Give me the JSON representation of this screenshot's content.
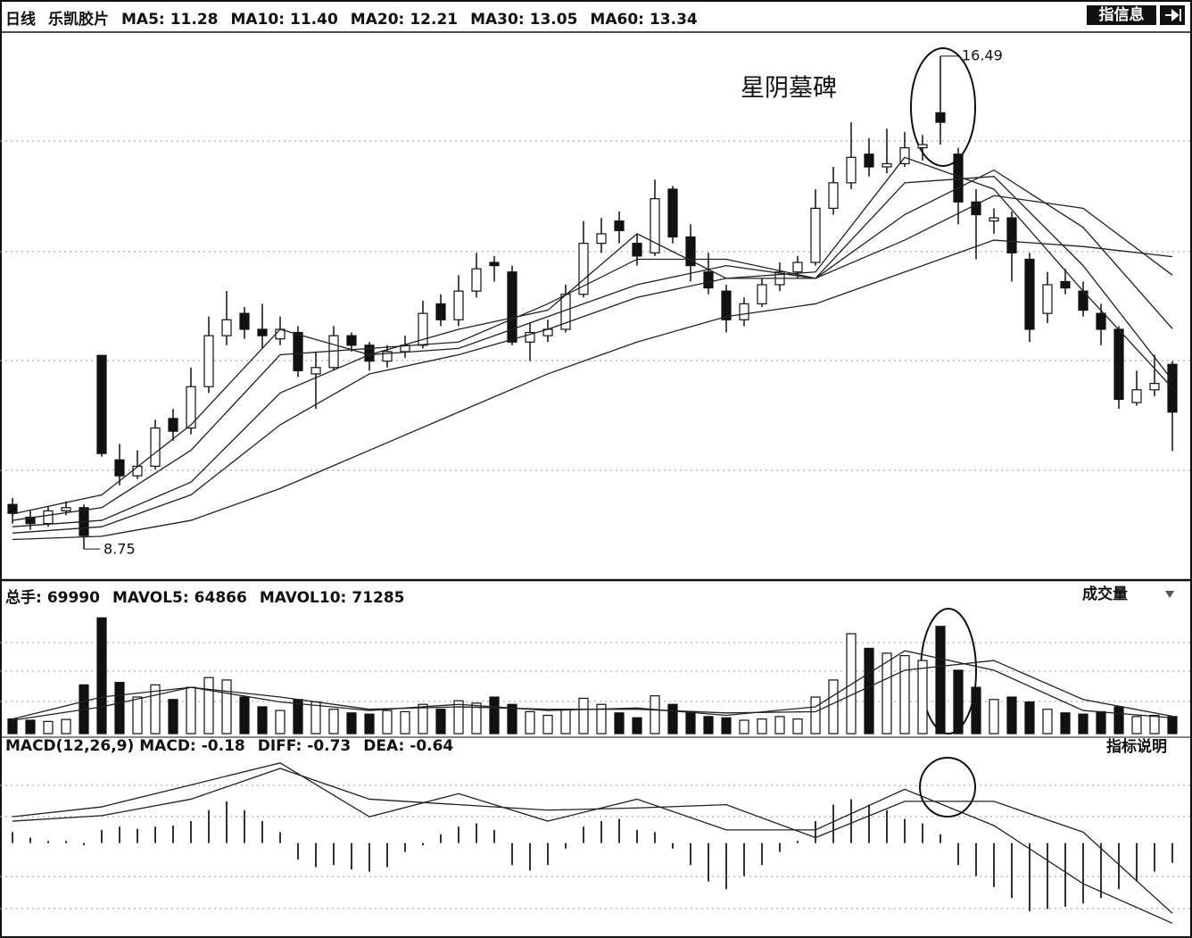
{
  "chart_data": {
    "type": "candlestick",
    "period": "日线",
    "name": "乐凯胶片",
    "info_button": "指信息",
    "annotation": "星阴墓碑",
    "high_label": 16.49,
    "low_label": 8.75,
    "ylim": [
      8.29,
      16.88
    ],
    "candles": [
      [
        9.45,
        9.55,
        9.15,
        9.31
      ],
      [
        9.25,
        9.35,
        9.05,
        9.15
      ],
      [
        9.15,
        9.42,
        9.1,
        9.35
      ],
      [
        9.35,
        9.5,
        9.28,
        9.4
      ],
      [
        9.4,
        9.45,
        8.75,
        8.96
      ],
      [
        11.79,
        11.8,
        10.2,
        10.25
      ],
      [
        10.15,
        10.4,
        9.75,
        9.9
      ],
      [
        9.9,
        10.3,
        9.85,
        10.05
      ],
      [
        10.05,
        10.78,
        10.0,
        10.65
      ],
      [
        10.8,
        10.95,
        10.45,
        10.6
      ],
      [
        10.65,
        11.6,
        10.55,
        11.3
      ],
      [
        11.3,
        12.4,
        11.2,
        12.1
      ],
      [
        12.1,
        12.8,
        11.95,
        12.35
      ],
      [
        12.45,
        12.55,
        12.05,
        12.2
      ],
      [
        12.2,
        12.6,
        11.9,
        12.1
      ],
      [
        12.05,
        12.4,
        11.95,
        12.2
      ],
      [
        12.15,
        12.25,
        11.45,
        11.55
      ],
      [
        11.5,
        11.85,
        10.95,
        11.6
      ],
      [
        11.6,
        12.25,
        11.55,
        12.1
      ],
      [
        12.1,
        12.15,
        11.85,
        11.95
      ],
      [
        11.95,
        12.0,
        11.55,
        11.7
      ],
      [
        11.7,
        11.95,
        11.6,
        11.85
      ],
      [
        11.85,
        12.1,
        11.75,
        11.95
      ],
      [
        11.95,
        12.65,
        11.9,
        12.45
      ],
      [
        12.6,
        12.75,
        12.25,
        12.35
      ],
      [
        12.35,
        13.05,
        12.25,
        12.8
      ],
      [
        12.8,
        13.4,
        12.7,
        13.15
      ],
      [
        13.25,
        13.35,
        12.95,
        13.2
      ],
      [
        13.1,
        13.2,
        11.95,
        12.0
      ],
      [
        12.0,
        12.3,
        11.7,
        12.15
      ],
      [
        12.1,
        12.35,
        12.0,
        12.2
      ],
      [
        12.2,
        12.9,
        12.15,
        12.75
      ],
      [
        12.75,
        13.9,
        12.7,
        13.55
      ],
      [
        13.55,
        13.95,
        13.4,
        13.7
      ],
      [
        13.9,
        14.05,
        13.55,
        13.75
      ],
      [
        13.55,
        13.7,
        13.2,
        13.35
      ],
      [
        13.4,
        14.55,
        13.35,
        14.25
      ],
      [
        14.4,
        14.45,
        13.55,
        13.65
      ],
      [
        13.65,
        13.85,
        12.95,
        13.2
      ],
      [
        13.1,
        13.4,
        12.75,
        12.85
      ],
      [
        12.8,
        12.9,
        12.15,
        12.35
      ],
      [
        12.35,
        12.7,
        12.25,
        12.6
      ],
      [
        12.6,
        13.0,
        12.55,
        12.9
      ],
      [
        12.9,
        13.25,
        12.8,
        13.1
      ],
      [
        13.1,
        13.35,
        13.0,
        13.25
      ],
      [
        13.25,
        14.4,
        13.2,
        14.1
      ],
      [
        14.1,
        14.75,
        14.0,
        14.5
      ],
      [
        14.5,
        15.45,
        14.4,
        14.9
      ],
      [
        14.95,
        15.2,
        14.6,
        14.75
      ],
      [
        14.75,
        15.35,
        14.65,
        14.8
      ],
      [
        14.8,
        15.3,
        14.75,
        15.05
      ],
      [
        15.05,
        15.25,
        14.85,
        15.1
      ],
      [
        15.6,
        16.49,
        15.1,
        15.45
      ],
      [
        14.95,
        15.05,
        13.85,
        14.2
      ],
      [
        14.2,
        14.4,
        13.3,
        14.0
      ],
      [
        13.9,
        14.1,
        13.7,
        13.95
      ],
      [
        13.95,
        14.05,
        12.95,
        13.4
      ],
      [
        13.3,
        13.4,
        12.0,
        12.2
      ],
      [
        12.45,
        13.1,
        12.3,
        12.9
      ],
      [
        12.95,
        13.15,
        12.75,
        12.85
      ],
      [
        12.8,
        12.95,
        12.4,
        12.5
      ],
      [
        12.45,
        12.6,
        11.95,
        12.2
      ],
      [
        12.2,
        12.25,
        10.95,
        11.1
      ],
      [
        11.05,
        11.55,
        11.0,
        11.25
      ],
      [
        11.25,
        11.8,
        11.15,
        11.35
      ],
      [
        11.65,
        11.7,
        10.29,
        10.9
      ]
    ],
    "ma_x": [
      0,
      5,
      10,
      15,
      20,
      25,
      30,
      35,
      40,
      45,
      50,
      55,
      60,
      65
    ],
    "indicators": [
      {
        "name": "MA5:",
        "value": 11.28,
        "values": [
          9.3,
          9.6,
          10.7,
          12.2,
          11.8,
          12.2,
          12.5,
          13.7,
          13.0,
          13.1,
          14.9,
          14.4,
          12.8,
          11.28
        ]
      },
      {
        "name": "MA10:",
        "value": 11.4,
        "value_label": "11.40",
        "values": [
          9.2,
          9.4,
          10.3,
          11.8,
          11.9,
          12.0,
          12.6,
          13.3,
          13.3,
          13.0,
          14.5,
          14.6,
          13.2,
          11.4
        ]
      },
      {
        "name": "MA20:",
        "value": 12.21,
        "values": [
          9.1,
          9.2,
          9.8,
          11.2,
          11.8,
          11.9,
          12.4,
          12.9,
          13.2,
          13.0,
          14.0,
          14.7,
          13.8,
          12.21
        ]
      },
      {
        "name": "MA30:",
        "value": 13.05,
        "values": [
          9.0,
          9.1,
          9.6,
          10.7,
          11.5,
          11.8,
          12.2,
          12.7,
          13.0,
          13.0,
          13.6,
          14.3,
          14.1,
          13.05
        ]
      },
      {
        "name": "MA60:",
        "value": 13.34,
        "values": [
          8.9,
          8.95,
          9.2,
          9.7,
          10.3,
          10.9,
          11.5,
          12.0,
          12.4,
          12.6,
          13.1,
          13.6,
          13.5,
          13.34
        ]
      }
    ],
    "volume": {
      "title": "成交量",
      "ylim": [
        0,
        520000
      ],
      "indicators": [
        {
          "name": "总手:",
          "value": 69990
        },
        {
          "name": "MAVOL5:",
          "value": 64866,
          "values": [
            60000,
            150000,
            190000,
            130000,
            95000,
            120000,
            95000,
            105000,
            75000,
            110000,
            340000,
            260000,
            95000,
            64866
          ]
        },
        {
          "name": "MAVOL10:",
          "value": 71285,
          "values": [
            55000,
            110000,
            190000,
            150000,
            100000,
            110000,
            100000,
            100000,
            85000,
            90000,
            260000,
            300000,
            140000,
            71285
          ]
        }
      ],
      "values": [
        60000,
        55000,
        50000,
        58000,
        200000,
        475000,
        210000,
        150000,
        200000,
        140000,
        190000,
        230000,
        220000,
        150000,
        110000,
        95000,
        140000,
        130000,
        100000,
        85000,
        80000,
        95000,
        90000,
        120000,
        100000,
        135000,
        125000,
        150000,
        120000,
        90000,
        75000,
        100000,
        145000,
        120000,
        85000,
        65000,
        155000,
        120000,
        90000,
        70000,
        65000,
        55000,
        60000,
        70000,
        60000,
        150000,
        220000,
        410000,
        350000,
        330000,
        320000,
        300000,
        440000,
        260000,
        190000,
        140000,
        150000,
        130000,
        100000,
        85000,
        80000,
        90000,
        110000,
        70000,
        75000,
        69990
      ]
    },
    "macd": {
      "title": "MACD(12,26,9)",
      "help_button": "指标说明",
      "ylim": [
        -0.84,
        0.81
      ],
      "indicators": [
        {
          "name": "MACD:",
          "value": -0.18
        },
        {
          "name": "DIFF:",
          "value": -0.73,
          "values": [
            0.24,
            0.33,
            0.53,
            0.73,
            0.24,
            0.45,
            0.2,
            0.4,
            0.12,
            0.12,
            0.49,
            0.16,
            -0.37,
            -0.73
          ]
        },
        {
          "name": "DEA:",
          "value": -0.64,
          "values": [
            0.2,
            0.25,
            0.4,
            0.68,
            0.4,
            0.35,
            0.3,
            0.32,
            0.35,
            0.05,
            0.38,
            0.38,
            0.1,
            -0.64
          ]
        }
      ],
      "histogram": [
        0.1,
        0.05,
        0.02,
        0.02,
        -0.02,
        0.12,
        0.15,
        0.13,
        0.15,
        0.16,
        0.2,
        0.3,
        0.38,
        0.3,
        0.2,
        0.1,
        -0.15,
        -0.22,
        -0.2,
        -0.24,
        -0.26,
        -0.22,
        -0.08,
        -0.02,
        0.08,
        0.15,
        0.18,
        0.12,
        -0.2,
        -0.25,
        -0.2,
        -0.05,
        0.15,
        0.2,
        0.22,
        0.12,
        0.1,
        -0.05,
        -0.2,
        -0.35,
        -0.42,
        -0.3,
        -0.2,
        -0.08,
        0.02,
        0.2,
        0.35,
        0.4,
        0.35,
        0.3,
        0.22,
        0.18,
        0.08,
        -0.2,
        -0.3,
        -0.4,
        -0.5,
        -0.62,
        -0.6,
        -0.58,
        -0.55,
        -0.5,
        -0.42,
        -0.35,
        -0.26,
        -0.18
      ]
    }
  }
}
